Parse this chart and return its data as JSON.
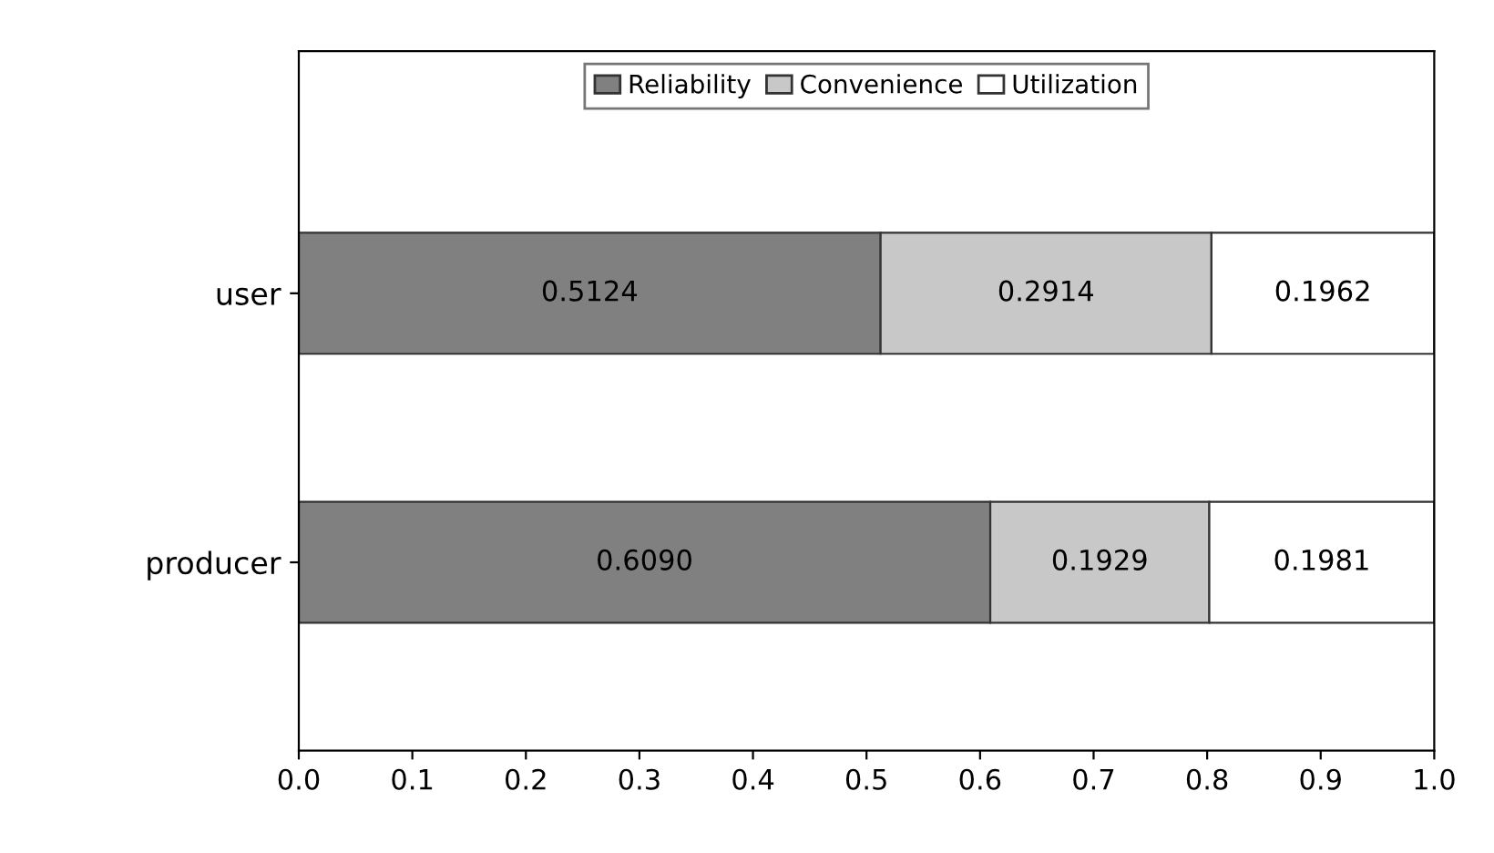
{
  "chart_data": {
    "type": "bar",
    "orientation": "horizontal",
    "stacked": true,
    "categories": [
      "user",
      "producer"
    ],
    "series": [
      {
        "name": "Reliability",
        "color": "#808080",
        "values": [
          0.5124,
          0.609
        ],
        "value_labels": [
          "0.5124",
          "0.6090"
        ]
      },
      {
        "name": "Convenience",
        "color": "#c8c8c8",
        "values": [
          0.2914,
          0.1929
        ],
        "value_labels": [
          "0.2914",
          "0.1929"
        ]
      },
      {
        "name": "Utilization",
        "color": "#ffffff",
        "values": [
          0.1962,
          0.1981
        ],
        "value_labels": [
          "0.1962",
          "0.1981"
        ]
      }
    ],
    "xlim": [
      0,
      1
    ],
    "xticks": [
      {
        "value": 0,
        "label": "0.0"
      },
      {
        "value": 0.1,
        "label": "0.1"
      },
      {
        "value": 0.2,
        "label": "0.2"
      },
      {
        "value": 0.3,
        "label": "0.3"
      },
      {
        "value": 0.4,
        "label": "0.4"
      },
      {
        "value": 0.5,
        "label": "0.5"
      },
      {
        "value": 0.6,
        "label": "0.6"
      },
      {
        "value": 0.7,
        "label": "0.7"
      },
      {
        "value": 0.8,
        "label": "0.8"
      },
      {
        "value": 0.9,
        "label": "0.9"
      },
      {
        "value": 1,
        "label": "1.0"
      }
    ],
    "legend": "top",
    "grid": false
  }
}
